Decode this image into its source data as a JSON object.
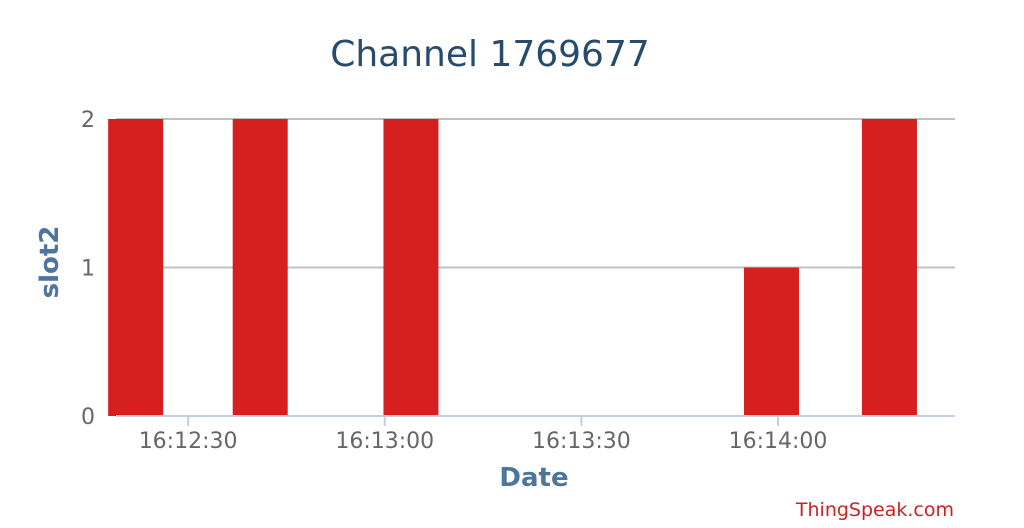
{
  "chart_data": {
    "type": "bar",
    "title": "Channel 1769677",
    "xlabel": "Date",
    "ylabel": "slot2",
    "x_ticks": [
      "16:12:30",
      "16:13:00",
      "16:13:30",
      "16:14:00"
    ],
    "y_ticks": [
      "0",
      "1",
      "2"
    ],
    "ylim": [
      0,
      2
    ],
    "xlim": [
      "16:12:19",
      "16:14:27"
    ],
    "grid": true,
    "legend": "none",
    "bar_color": "#d62020",
    "points": [
      {
        "x": "16:12:22",
        "y": 2
      },
      {
        "x": "16:12:41",
        "y": 2
      },
      {
        "x": "16:13:04",
        "y": 2
      },
      {
        "x": "16:13:59",
        "y": 1
      },
      {
        "x": "16:14:17",
        "y": 2
      }
    ]
  },
  "credit": "ThingSpeak.com"
}
